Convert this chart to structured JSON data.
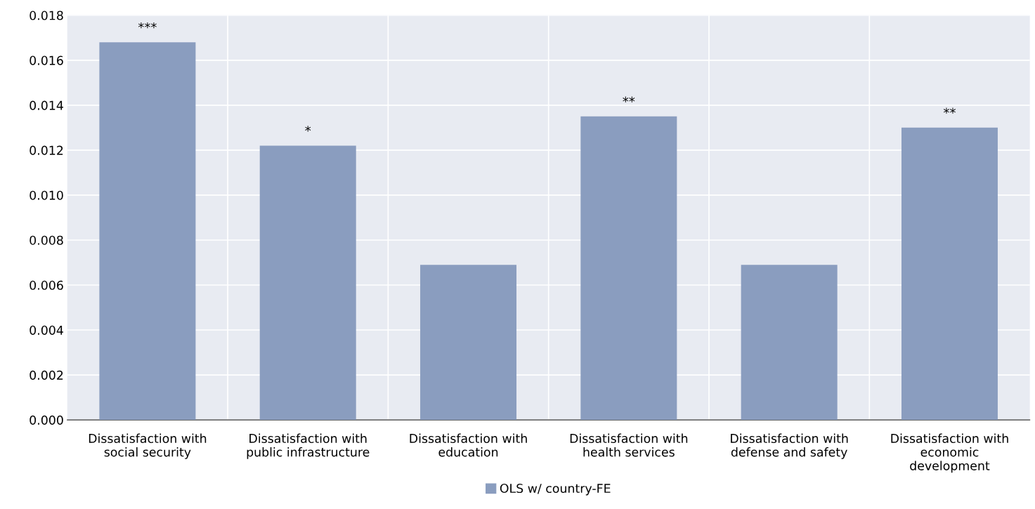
{
  "chart_data": {
    "type": "bar",
    "categories": [
      "Dissatisfaction with\nsocial security",
      "Dissatisfaction with\npublic infrastructure",
      "Dissatisfaction with\neducation",
      "Dissatisfaction with\nhealth services",
      "Dissatisfaction with\ndefense and safety",
      "Dissatisfaction with\neconomic\ndevelopment"
    ],
    "series": [
      {
        "name": "OLS w/ country-FE",
        "color": "#8a9dbf",
        "values": [
          0.0168,
          0.0122,
          0.0069,
          0.0135,
          0.0069,
          0.013
        ]
      }
    ],
    "ylim": [
      0,
      0.018
    ],
    "yticks": [
      {
        "value": 0,
        "label": "0.000"
      },
      {
        "value": 0.002,
        "label": "0.002"
      },
      {
        "value": 0.004,
        "label": "0.004"
      },
      {
        "value": 0.006,
        "label": "0.006"
      },
      {
        "value": 0.008,
        "label": "0.008"
      },
      {
        "value": 0.01,
        "label": "0.010"
      },
      {
        "value": 0.012,
        "label": "0.012"
      },
      {
        "value": 0.014,
        "label": "0.014"
      },
      {
        "value": 0.016,
        "label": "0.016"
      },
      {
        "value": 0.018,
        "label": "0.018"
      }
    ],
    "annotations": [
      {
        "text": "***",
        "x": "Dissatisfaction with\nsocial security",
        "y": 0.0168
      },
      {
        "text": "*",
        "x": "Dissatisfaction with\npublic infrastructure",
        "y": 0.0122
      },
      {
        "text": "**",
        "x": "Dissatisfaction with\nhealth services",
        "y": 0.0135
      },
      {
        "text": "**",
        "x": "Dissatisfaction with\neconomic\ndevelopment",
        "y": 0.013
      }
    ],
    "grid": true,
    "legend": "bottom"
  }
}
